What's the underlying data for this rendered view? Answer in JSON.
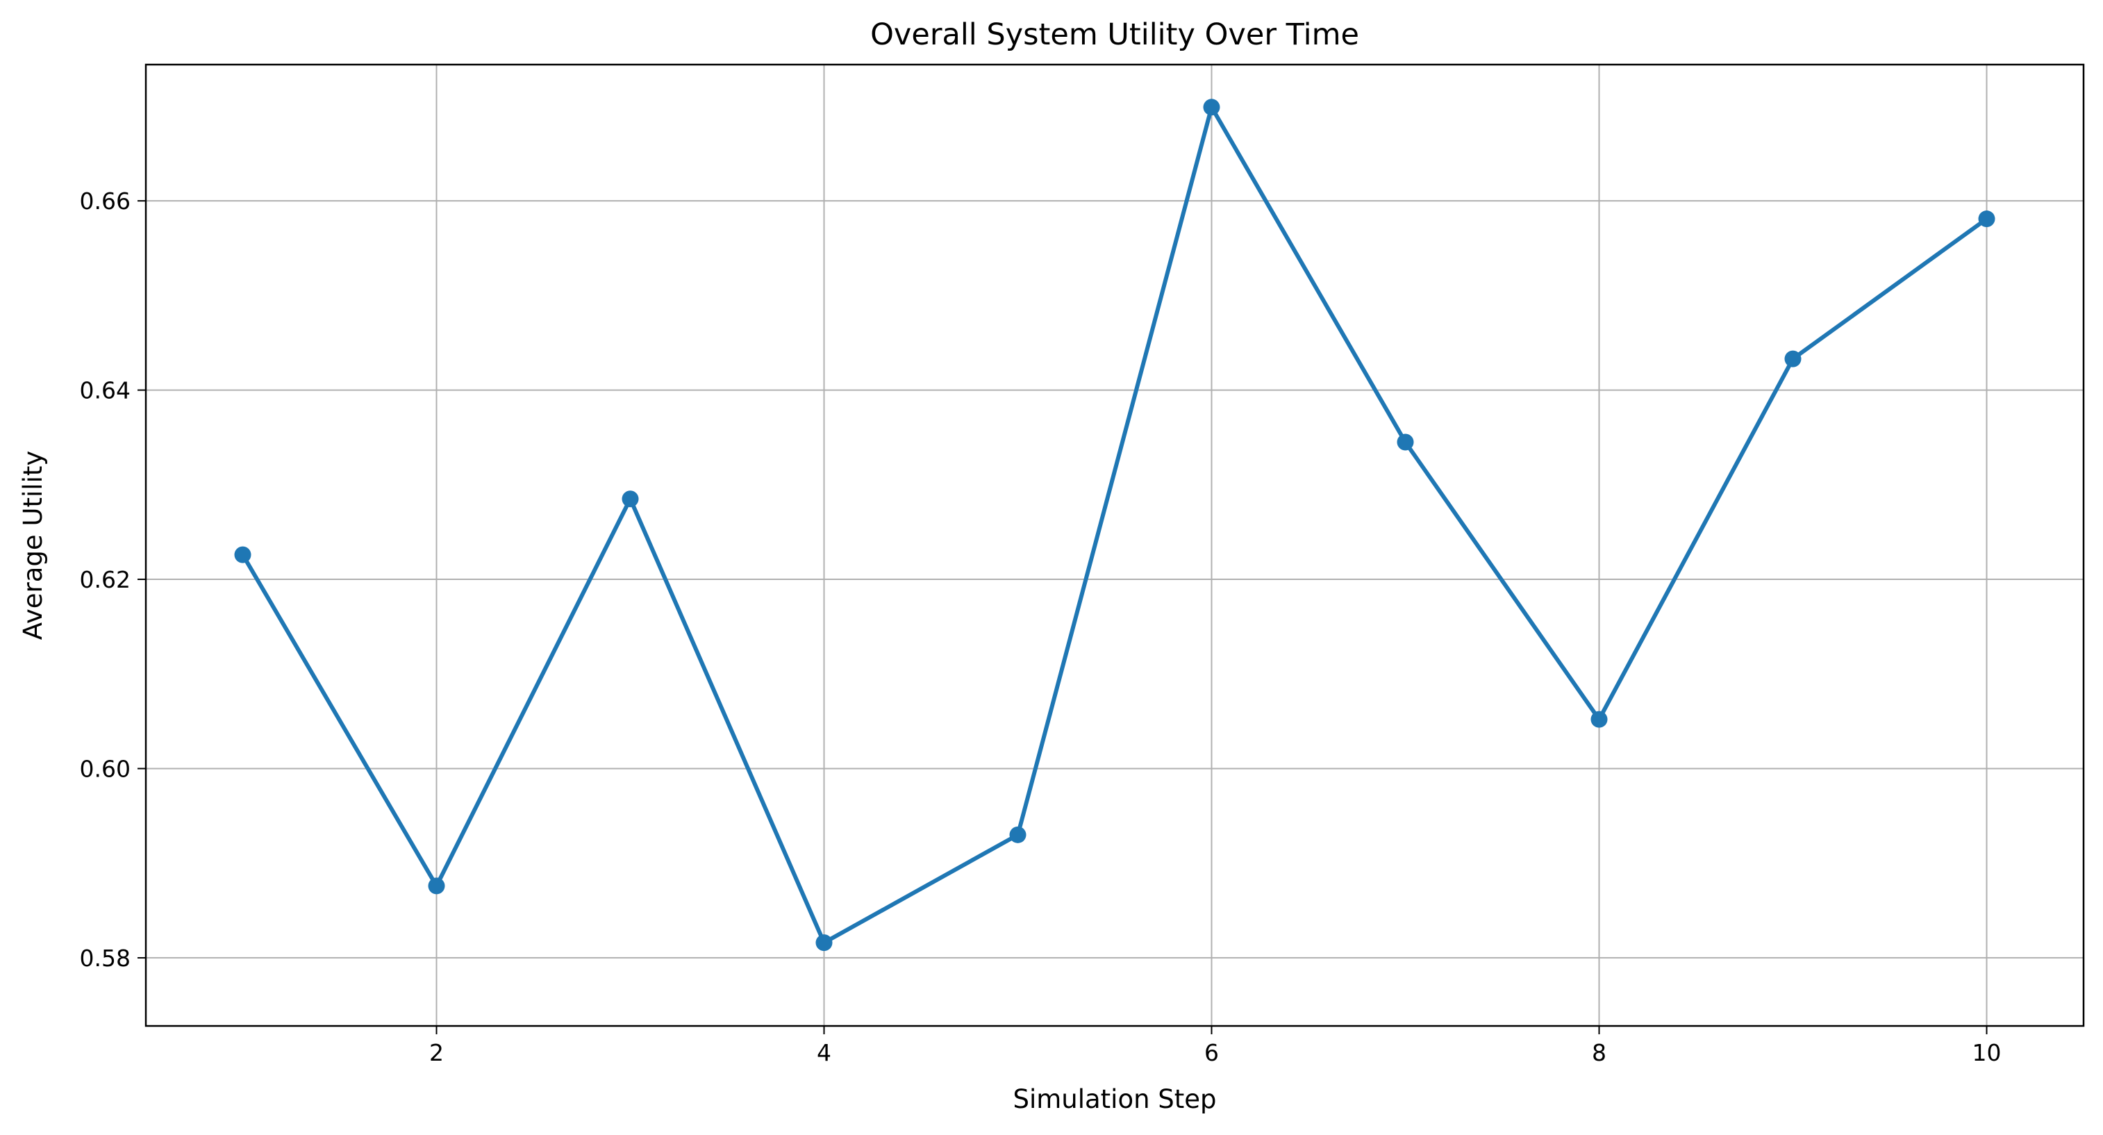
{
  "chart_data": {
    "type": "line",
    "title": "Overall System Utility Over Time",
    "xlabel": "Simulation Step",
    "ylabel": "Average Utility",
    "xlim": [
      0.5,
      10.5
    ],
    "ylim": [
      0.5728,
      0.6744
    ],
    "xticks": [
      2,
      4,
      6,
      8,
      10
    ],
    "xtick_labels": [
      "2",
      "4",
      "6",
      "8",
      "10"
    ],
    "yticks": [
      0.58,
      0.6,
      0.62,
      0.64,
      0.66
    ],
    "ytick_labels": [
      "0.58",
      "0.60",
      "0.62",
      "0.64",
      "0.66"
    ],
    "grid": true,
    "legend": false,
    "series": [
      {
        "x": [
          1,
          2,
          3,
          4,
          5,
          6,
          7,
          8,
          9,
          10
        ],
        "y": [
          0.6226,
          0.5876,
          0.6285,
          0.5816,
          0.593,
          0.6699,
          0.6345,
          0.6052,
          0.6433,
          0.6581
        ],
        "marker": "circle",
        "color": "#1f77b4"
      }
    ]
  }
}
